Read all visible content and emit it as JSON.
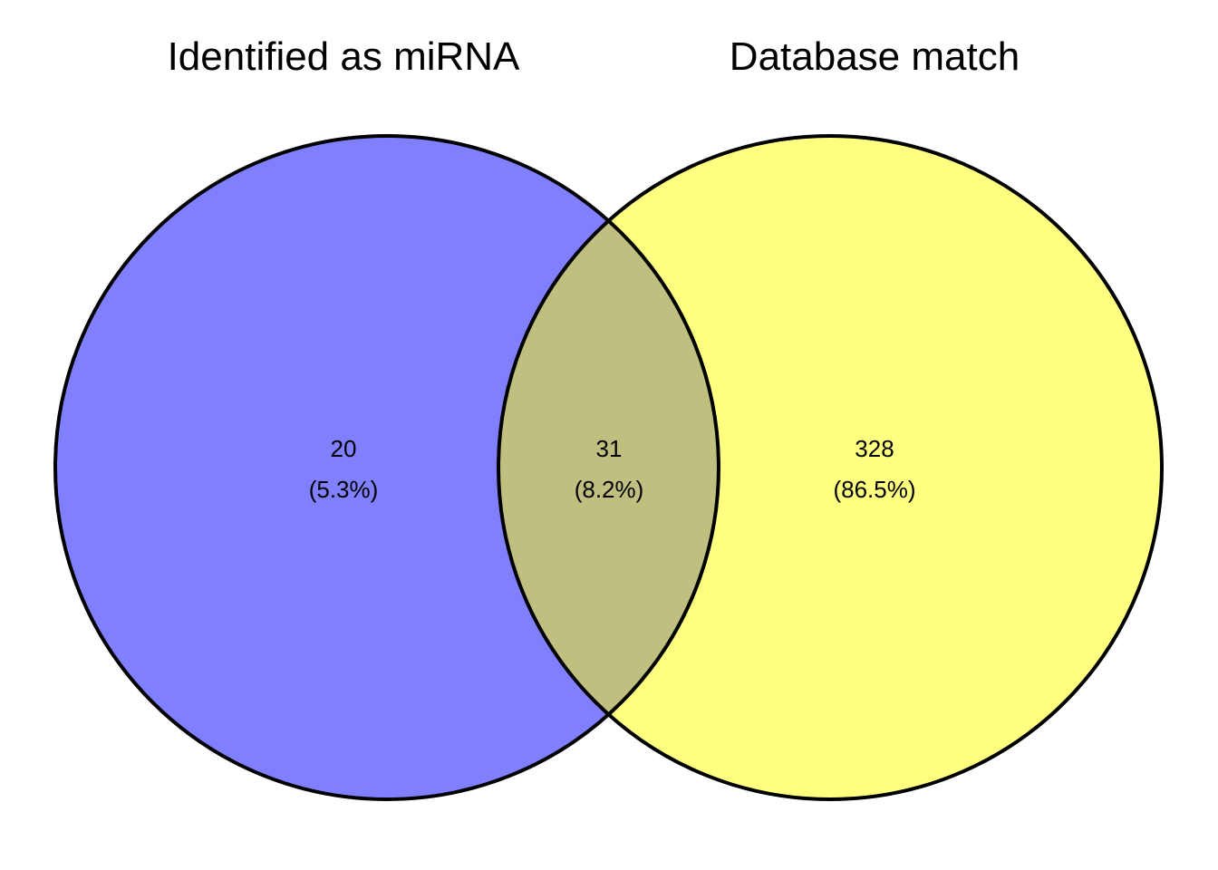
{
  "chart_data": {
    "type": "venn",
    "sets": [
      {
        "name": "Identified as miRNA",
        "color": "#8080FF"
      },
      {
        "name": "Database match",
        "color": "#FFFF80"
      }
    ],
    "overlap_color": "#BFBF80",
    "regions": [
      {
        "sets": [
          "Identified as miRNA"
        ],
        "count": "20",
        "percent": "(5.3%)"
      },
      {
        "sets": [
          "Identified as miRNA",
          "Database match"
        ],
        "count": "31",
        "percent": "(8.2%)"
      },
      {
        "sets": [
          "Database match"
        ],
        "count": "328",
        "percent": "(86.5%)"
      }
    ]
  }
}
